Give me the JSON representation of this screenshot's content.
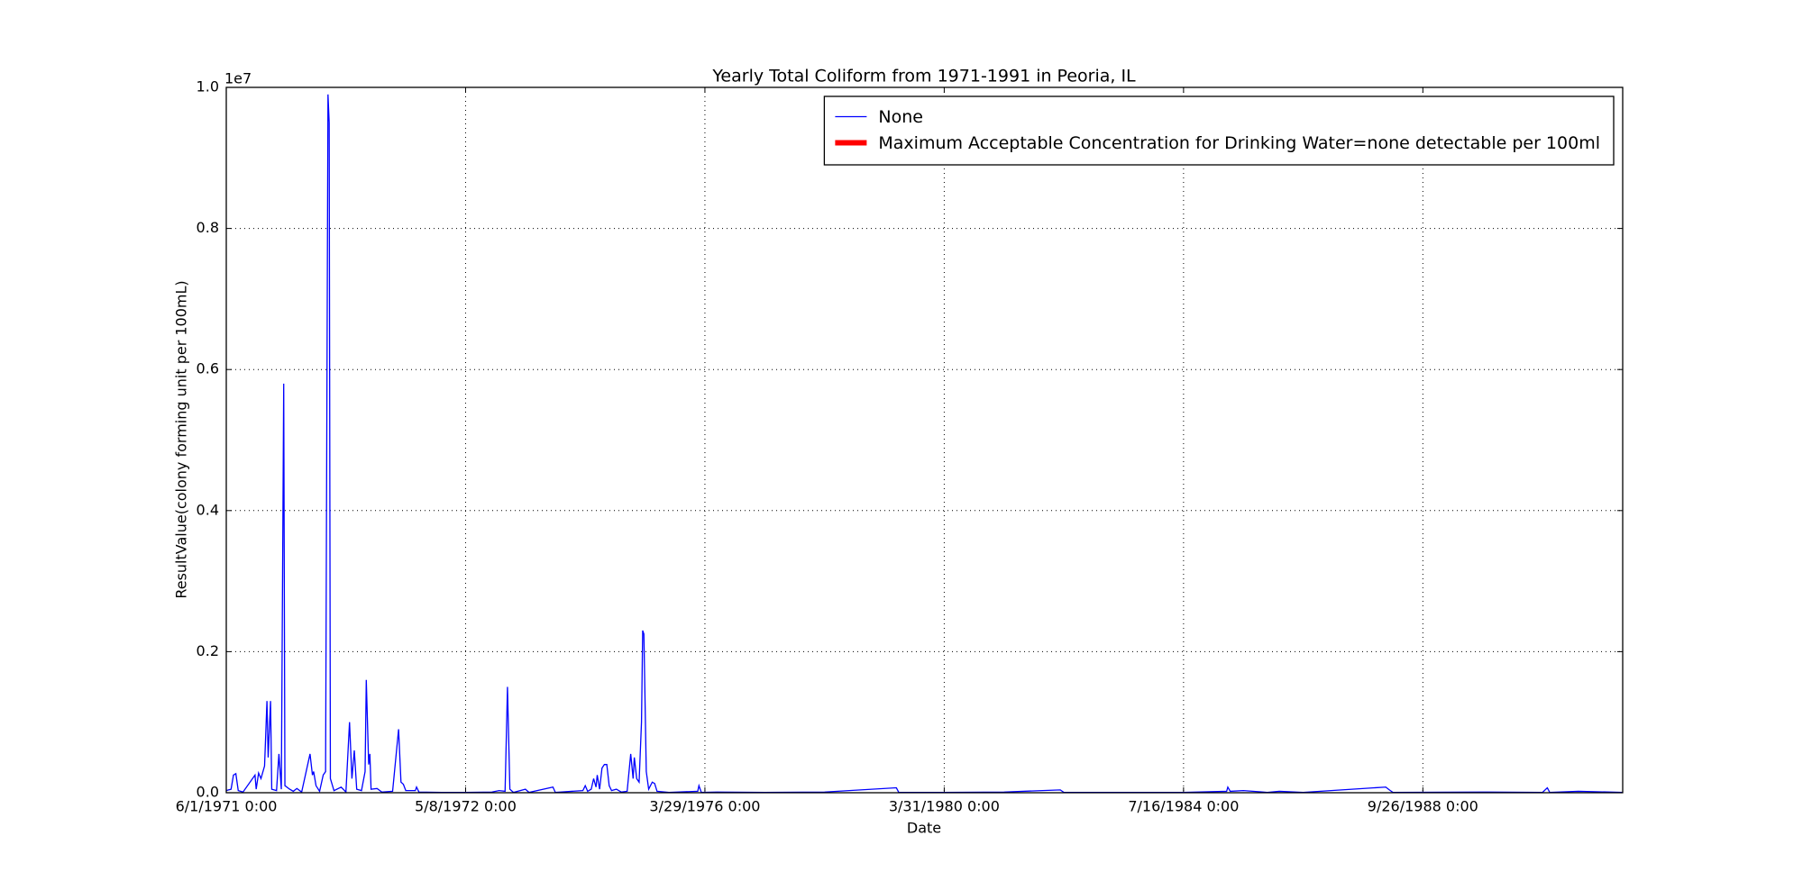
{
  "chart_data": {
    "type": "line",
    "title": "Yearly Total Coliform from 1971-1991 in Peoria, IL",
    "x_label": "Date",
    "y_label": "ResultValue(colony forming unit per 100mL)",
    "y_offset_label": "1e7",
    "xlim": [
      0,
      1167
    ],
    "xticks": [
      {
        "value": 0,
        "label": "6/1/1971 0:00"
      },
      {
        "value": 200,
        "label": "5/8/1972 0:00"
      },
      {
        "value": 400,
        "label": "3/29/1976 0:00"
      },
      {
        "value": 600,
        "label": "3/31/1980 0:00"
      },
      {
        "value": 800,
        "label": "7/16/1984 0:00"
      },
      {
        "value": 1000,
        "label": "9/26/1988 0:00"
      }
    ],
    "ylim": [
      0,
      10000000
    ],
    "yticks": [
      {
        "value": 0,
        "label": "0.0"
      },
      {
        "value": 2000000,
        "label": "0.2"
      },
      {
        "value": 4000000,
        "label": "0.4"
      },
      {
        "value": 6000000,
        "label": "0.6"
      },
      {
        "value": 8000000,
        "label": "0.8"
      },
      {
        "value": 10000000,
        "label": "1.0"
      }
    ],
    "grid": true,
    "legend_position": "upper right",
    "series": [
      {
        "name": "None",
        "color": "#0000ff",
        "x": [
          0,
          4,
          6,
          8,
          10,
          14,
          24,
          25,
          27,
          29,
          32,
          34,
          35,
          37,
          38,
          42,
          44,
          46,
          48,
          49,
          53,
          56,
          59,
          63,
          70,
          72,
          73,
          75,
          78,
          81,
          83,
          85,
          86,
          87,
          90,
          96,
          100,
          103,
          105,
          107,
          109,
          113,
          116,
          117,
          119,
          120,
          121,
          126,
          130,
          139,
          144,
          146,
          148,
          150,
          158,
          159,
          161,
          180,
          200,
          222,
          228,
          233,
          235,
          237,
          240,
          250,
          253,
          273,
          275,
          298,
          300,
          302,
          305,
          307,
          309,
          310,
          312,
          314,
          316,
          318,
          320,
          322,
          326,
          330,
          335,
          338,
          340,
          341,
          343,
          345,
          347,
          348,
          349,
          351,
          353,
          356,
          358,
          360,
          370,
          394,
          395,
          397,
          410,
          450,
          500,
          560,
          562,
          600,
          650,
          697,
          700,
          750,
          800,
          836,
          837,
          839,
          850,
          870,
          880,
          900,
          969,
          972,
          975,
          1050,
          1100,
          1104,
          1106,
          1130,
          1167
        ],
        "values": [
          30000,
          50000,
          250000,
          270000,
          30000,
          10000,
          250000,
          50000,
          280000,
          200000,
          380000,
          1300000,
          500000,
          1300000,
          50000,
          30000,
          550000,
          50000,
          5800000,
          100000,
          50000,
          20000,
          60000,
          10000,
          550000,
          250000,
          300000,
          100000,
          20000,
          250000,
          300000,
          9900000,
          9500000,
          200000,
          30000,
          80000,
          10000,
          1000000,
          200000,
          600000,
          50000,
          30000,
          300000,
          1600000,
          400000,
          550000,
          50000,
          60000,
          10000,
          20000,
          900000,
          150000,
          120000,
          30000,
          30000,
          80000,
          10000,
          5000,
          5000,
          10000,
          30000,
          20000,
          1500000,
          50000,
          5000,
          50000,
          5000,
          80000,
          5000,
          30000,
          100000,
          20000,
          50000,
          200000,
          80000,
          250000,
          50000,
          350000,
          400000,
          400000,
          100000,
          30000,
          50000,
          10000,
          20000,
          550000,
          200000,
          500000,
          200000,
          150000,
          1000000,
          2300000,
          2250000,
          300000,
          50000,
          150000,
          130000,
          20000,
          5000,
          20000,
          100000,
          5000,
          10000,
          5000,
          10000,
          70000,
          5000,
          5000,
          10000,
          40000,
          5000,
          5000,
          5000,
          20000,
          80000,
          20000,
          30000,
          5000,
          20000,
          5000,
          80000,
          40000,
          5000,
          10000,
          5000,
          70000,
          5000,
          20000,
          5000
        ]
      },
      {
        "name": "Maximum Acceptable Concentration for Drinking Water=none detectable per 100ml",
        "color": "#ff0000"
      }
    ]
  }
}
